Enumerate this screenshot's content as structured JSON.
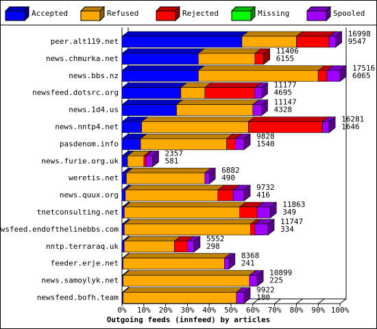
{
  "chart_data": {
    "type": "bar3d_stacked_horizontal",
    "x_label": "Outgoing feeds (innfeed) by articles",
    "categories": [
      "peer.alt119.net",
      "news.chmurka.net",
      "news.bbs.nz",
      "newsfeed.dotsrc.org",
      "news.1d4.us",
      "news.nntp4.net",
      "pasdenom.info",
      "news.furie.org.uk",
      "weretis.net",
      "news.quux.org",
      "tnetconsulting.net",
      "newsfeed.endofthelinebbs.com",
      "nntp.terraraq.uk",
      "feeder.erje.net",
      "news.samoylyk.net",
      "newsfeed.bofh.team"
    ],
    "series": [
      {
        "name": "Accepted",
        "color": "#0000ff",
        "values": [
          55,
          35,
          35,
          27,
          25,
          9,
          8.5,
          2.5,
          2,
          1.5,
          1,
          1,
          1,
          0.5,
          0.5,
          0.5
        ]
      },
      {
        "name": "Refused",
        "color": "#ffaa00",
        "values": [
          25,
          26,
          55,
          11,
          35,
          49,
          39.5,
          7.5,
          36,
          42.5,
          53,
          58,
          23,
          46.5,
          58,
          52
        ]
      },
      {
        "name": "Rejected",
        "color": "#ff0000",
        "values": [
          15,
          4,
          4,
          23,
          0,
          34,
          4,
          1,
          0,
          7,
          8,
          2,
          6,
          0,
          0,
          0
        ]
      },
      {
        "name": "Missing",
        "color": "#00ff00",
        "values": [
          0,
          0,
          0,
          0,
          0,
          0,
          0,
          0,
          0,
          0,
          0,
          0,
          0,
          0,
          0,
          0
        ]
      },
      {
        "name": "Spooled",
        "color": "#a000ff",
        "values": [
          3,
          0,
          6,
          3,
          4,
          3,
          4,
          3,
          2,
          5,
          6,
          6,
          3,
          2,
          3.5,
          3.5
        ]
      }
    ],
    "offered": [
      16998,
      11406,
      17516,
      11177,
      11147,
      16281,
      9828,
      2357,
      6882,
      9732,
      11863,
      11747,
      5552,
      8368,
      10899,
      9922
    ],
    "accepted_counts": [
      9547,
      6155,
      6065,
      4695,
      4328,
      1646,
      1540,
      581,
      490,
      416,
      349,
      334,
      298,
      241,
      225,
      180
    ],
    "xlim": [
      0,
      100
    ],
    "xticks": [
      {
        "value": 0,
        "label": "0%"
      },
      {
        "value": 10,
        "label": "10%"
      },
      {
        "value": 20,
        "label": "20%"
      },
      {
        "value": 30,
        "label": "30%"
      },
      {
        "value": 40,
        "label": "40%"
      },
      {
        "value": 50,
        "label": "50%"
      },
      {
        "value": 60,
        "label": "60%"
      },
      {
        "value": 70,
        "label": "70%"
      },
      {
        "value": 80,
        "label": "80%"
      },
      {
        "value": 90,
        "label": "90%"
      },
      {
        "value": 100,
        "label": "100%"
      }
    ]
  }
}
